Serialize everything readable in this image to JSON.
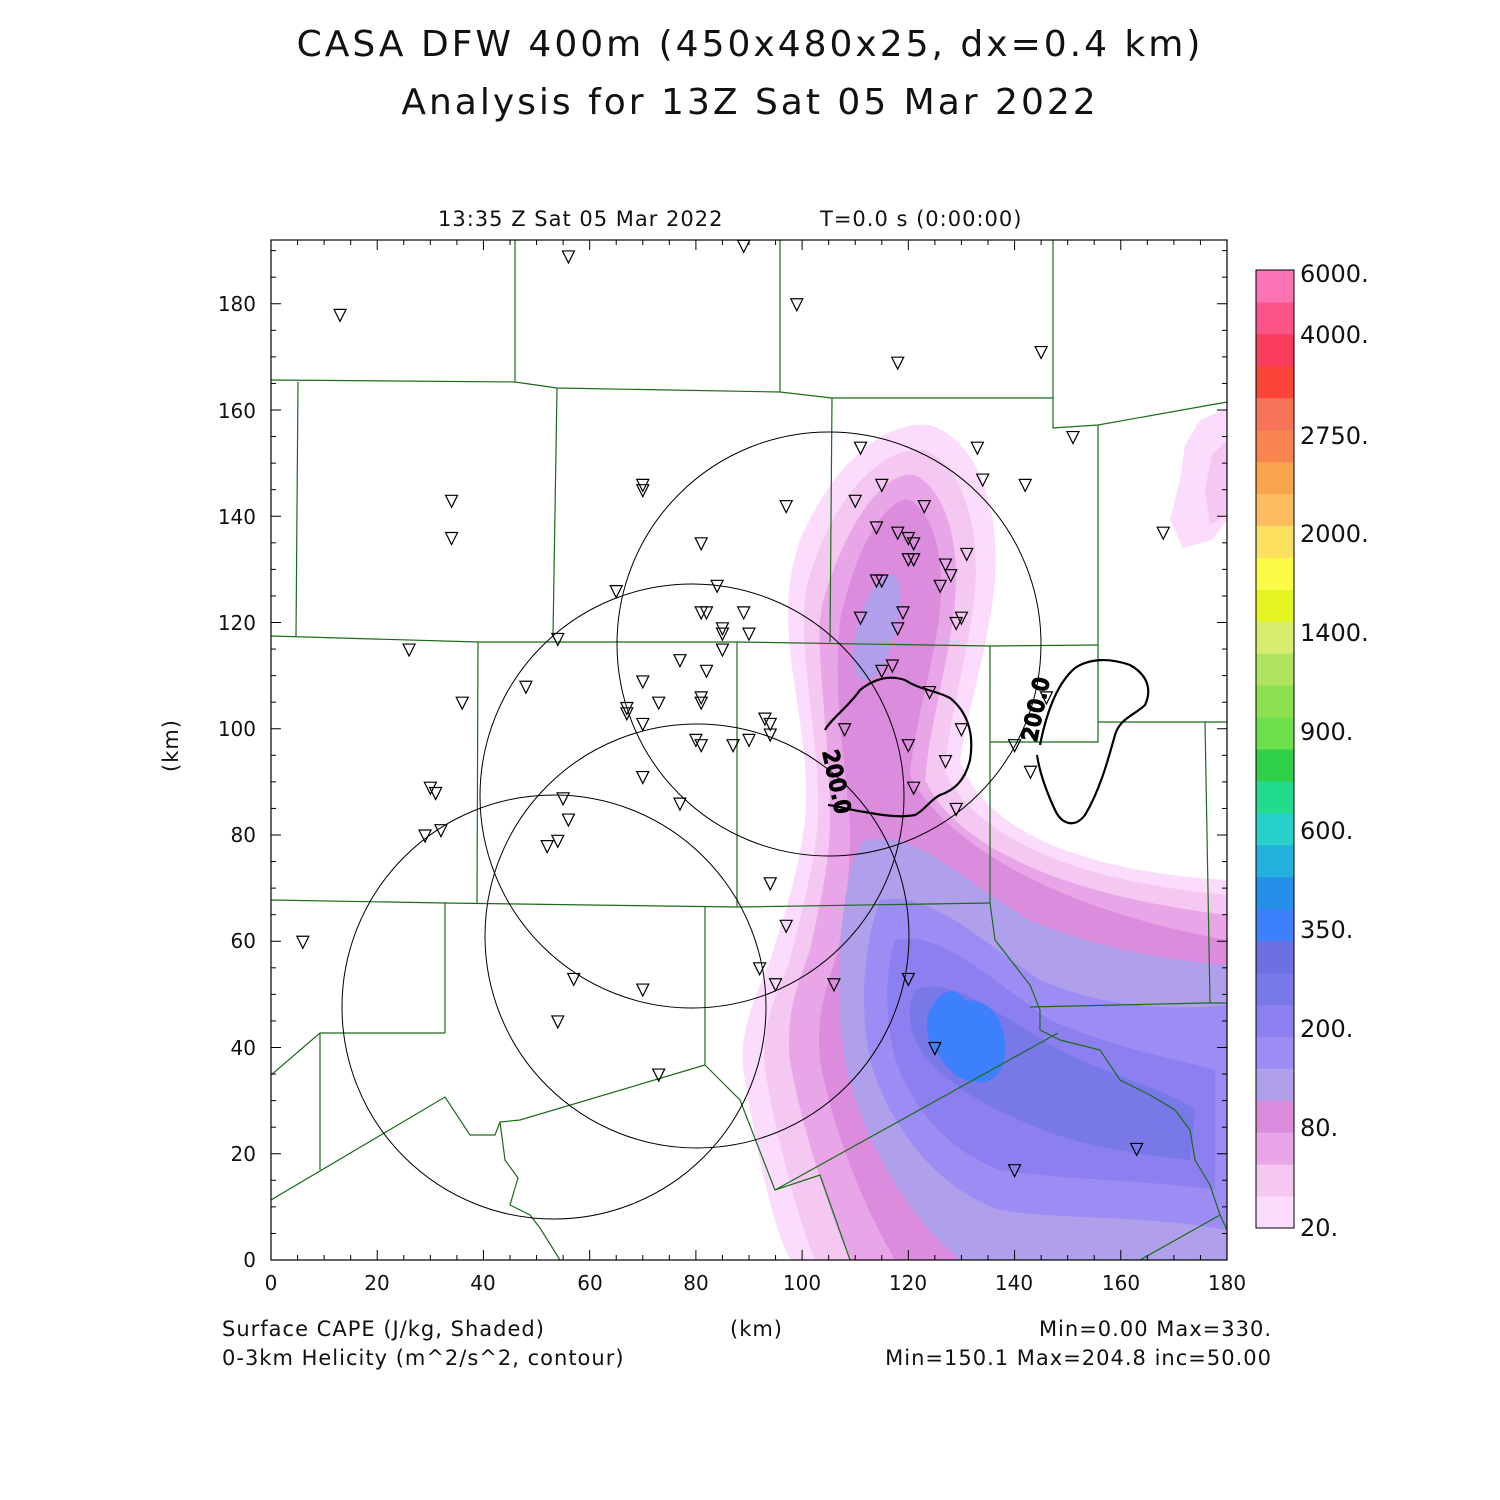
{
  "header": {
    "title_line1": "CASA DFW 400m (450x480x25, dx=0.4 km)",
    "title_line2": "Analysis for 13Z Sat 05 Mar 2022",
    "valid_time": "13:35 Z Sat 05 Mar 2022",
    "forecast_time": "T=0.0 s (0:00:00)"
  },
  "axes": {
    "xlabel": "(km)",
    "ylabel": "(km)",
    "x_ticks": [
      "0",
      "20",
      "40",
      "60",
      "80",
      "100",
      "120",
      "140",
      "160",
      "180"
    ],
    "y_ticks": [
      "0",
      "20",
      "40",
      "60",
      "80",
      "100",
      "120",
      "140",
      "160",
      "180"
    ],
    "xlim": [
      0,
      180
    ],
    "ylim": [
      0,
      192
    ]
  },
  "footer": {
    "field1_label": "Surface CAPE (J/kg, Shaded)",
    "field1_stats": "Min=0.00 Max=330.",
    "field2_label": "0-3km Helicity (m^2/s^2, contour)",
    "field2_stats": "Min=150.1 Max=204.8 inc=50.00",
    "center_label": "(km)"
  },
  "colorbar": {
    "labels": [
      "6000.",
      "4000.",
      "2750.",
      "2000.",
      "1400.",
      "900.",
      "600.",
      "350.",
      "200.",
      "80.",
      "20."
    ],
    "colors_bottom_to_top": [
      "#fcdcfc",
      "#f4c8f0",
      "#e8a6e8",
      "#dc8cdc",
      "#b0a0ec",
      "#9c8cf4",
      "#8c80f0",
      "#7878e8",
      "#6c70e0",
      "#3c80fc",
      "#2490e8",
      "#24b0dc",
      "#28d0cc",
      "#20dc8c",
      "#30d048",
      "#6ce04c",
      "#8ce050",
      "#b0e460",
      "#d8ec70",
      "#e4f420",
      "#fcfc48",
      "#fce060",
      "#fcbc60",
      "#f8a44c",
      "#f88450",
      "#f87458",
      "#fc4438",
      "#fc3c5c",
      "#fc5488",
      "#fc74b4"
    ]
  },
  "helicity_contour_label": "200.0",
  "chart_data": {
    "type": "heatmap",
    "title": "CASA DFW 400m (450x480x25, dx=0.4 km)",
    "xlabel": "(km)",
    "ylabel": "(km)",
    "xlim": [
      0,
      180
    ],
    "ylim": [
      0,
      192
    ],
    "shaded_field": "Surface CAPE (J/kg, Shaded)",
    "shaded_min": 0.0,
    "shaded_max": 330,
    "contour_field": "0-3km Helicity (m^2/s^2, contour)",
    "contour_min": 150.1,
    "contour_max": 204.8,
    "contour_inc": 50.0,
    "contour_levels_drawn": [
      200.0
    ],
    "radar_ranges": [
      {
        "cx": 105,
        "cy": 116,
        "r": 39
      },
      {
        "cx": 79,
        "cy": 87,
        "r": 40
      },
      {
        "cx": 80,
        "cy": 61,
        "r": 40
      },
      {
        "cx": 52,
        "cy": 48,
        "r": 40
      }
    ],
    "station_markers": [
      [
        13,
        178
      ],
      [
        56,
        189
      ],
      [
        89,
        191
      ],
      [
        99,
        180
      ],
      [
        118,
        169
      ],
      [
        145,
        171
      ],
      [
        151,
        155
      ],
      [
        34,
        143
      ],
      [
        34,
        136
      ],
      [
        70,
        146
      ],
      [
        70,
        145
      ],
      [
        81,
        135
      ],
      [
        97,
        142
      ],
      [
        111,
        153
      ],
      [
        133,
        153
      ],
      [
        134,
        147
      ],
      [
        142,
        146
      ],
      [
        110,
        143
      ],
      [
        115,
        146
      ],
      [
        123,
        142
      ],
      [
        114,
        138
      ],
      [
        118,
        137
      ],
      [
        120,
        136
      ],
      [
        121,
        135
      ],
      [
        168,
        137
      ],
      [
        131,
        133
      ],
      [
        127,
        131
      ],
      [
        120,
        132
      ],
      [
        121,
        132
      ],
      [
        128,
        129
      ],
      [
        65,
        126
      ],
      [
        84,
        127
      ],
      [
        114,
        128
      ],
      [
        115,
        128
      ],
      [
        126,
        127
      ],
      [
        81,
        122
      ],
      [
        82,
        122
      ],
      [
        89,
        122
      ],
      [
        119,
        122
      ],
      [
        111,
        121
      ],
      [
        130,
        121
      ],
      [
        129,
        120
      ],
      [
        85,
        119
      ],
      [
        85,
        118
      ],
      [
        90,
        118
      ],
      [
        118,
        119
      ],
      [
        26,
        115
      ],
      [
        54,
        117
      ],
      [
        85,
        115
      ],
      [
        77,
        113
      ],
      [
        82,
        111
      ],
      [
        70,
        109
      ],
      [
        117,
        112
      ],
      [
        115,
        111
      ],
      [
        48,
        108
      ],
      [
        36,
        105
      ],
      [
        73,
        105
      ],
      [
        81,
        105
      ],
      [
        81,
        106
      ],
      [
        124,
        107
      ],
      [
        146,
        106
      ],
      [
        67,
        104
      ],
      [
        67,
        103
      ],
      [
        70,
        101
      ],
      [
        93,
        102
      ],
      [
        94,
        101
      ],
      [
        94,
        99
      ],
      [
        108,
        100
      ],
      [
        130,
        100
      ],
      [
        80,
        98
      ],
      [
        81,
        97
      ],
      [
        87,
        97
      ],
      [
        90,
        98
      ],
      [
        120,
        97
      ],
      [
        140,
        97
      ],
      [
        127,
        94
      ],
      [
        143,
        92
      ],
      [
        70,
        91
      ],
      [
        30,
        89
      ],
      [
        31,
        88
      ],
      [
        55,
        87
      ],
      [
        77,
        86
      ],
      [
        121,
        89
      ],
      [
        129,
        85
      ],
      [
        29,
        80
      ],
      [
        32,
        81
      ],
      [
        54,
        79
      ],
      [
        56,
        83
      ],
      [
        52,
        78
      ],
      [
        94,
        71
      ],
      [
        97,
        63
      ],
      [
        6,
        60
      ],
      [
        92,
        55
      ],
      [
        57,
        53
      ],
      [
        95,
        52
      ],
      [
        106,
        52
      ],
      [
        120,
        53
      ],
      [
        70,
        51
      ],
      [
        54,
        45
      ],
      [
        125,
        40
      ],
      [
        73,
        35
      ],
      [
        163,
        21
      ],
      [
        140,
        17
      ]
    ]
  }
}
